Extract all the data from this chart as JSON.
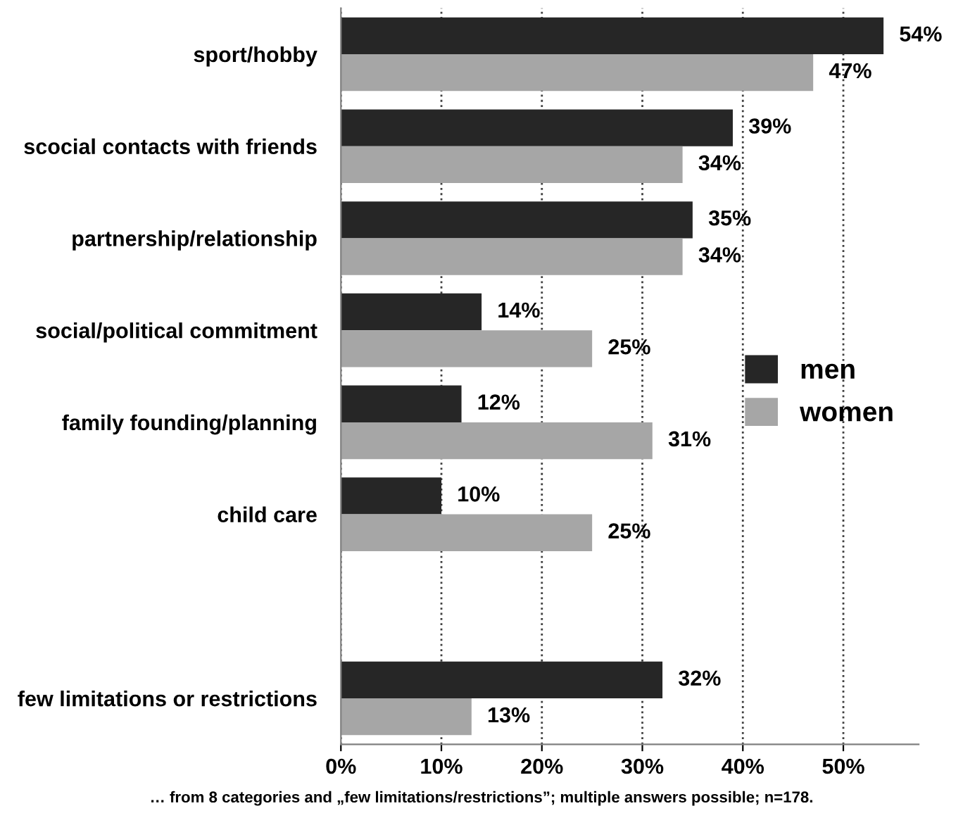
{
  "chart_data": {
    "type": "bar",
    "orientation": "horizontal",
    "categories": [
      "sport/hobby",
      "scocial contacts with friends",
      "partnership/relationship",
      "social/political commitment",
      "family founding/planning",
      "child care",
      null,
      "few limitations or restrictions"
    ],
    "series": [
      {
        "name": "men",
        "color": "#262626",
        "values": [
          54,
          39,
          35,
          14,
          12,
          10,
          null,
          32
        ],
        "value_labels": [
          "54%",
          "39%",
          "35%",
          "14%",
          "12%",
          "10%",
          null,
          "32%"
        ]
      },
      {
        "name": "women",
        "color": "#a6a6a6",
        "values": [
          47,
          34,
          34,
          25,
          31,
          25,
          null,
          13
        ],
        "value_labels": [
          "47%",
          "34%",
          "34%",
          "25%",
          "31%",
          "25%",
          null,
          "13%"
        ]
      }
    ],
    "xlim": [
      0,
      57.5
    ],
    "xticks": [
      {
        "value": 0,
        "label": "0%"
      },
      {
        "value": 10,
        "label": "10%"
      },
      {
        "value": 20,
        "label": "20%"
      },
      {
        "value": 30,
        "label": "30%"
      },
      {
        "value": 40,
        "label": "40%"
      },
      {
        "value": 50,
        "label": "50%"
      }
    ],
    "grid": "x",
    "line_style": "dotted",
    "legend": "right",
    "annotations": [
      "… from 8 categories and „few limitations/restrictions”; multiple answers possible; n=178."
    ]
  }
}
